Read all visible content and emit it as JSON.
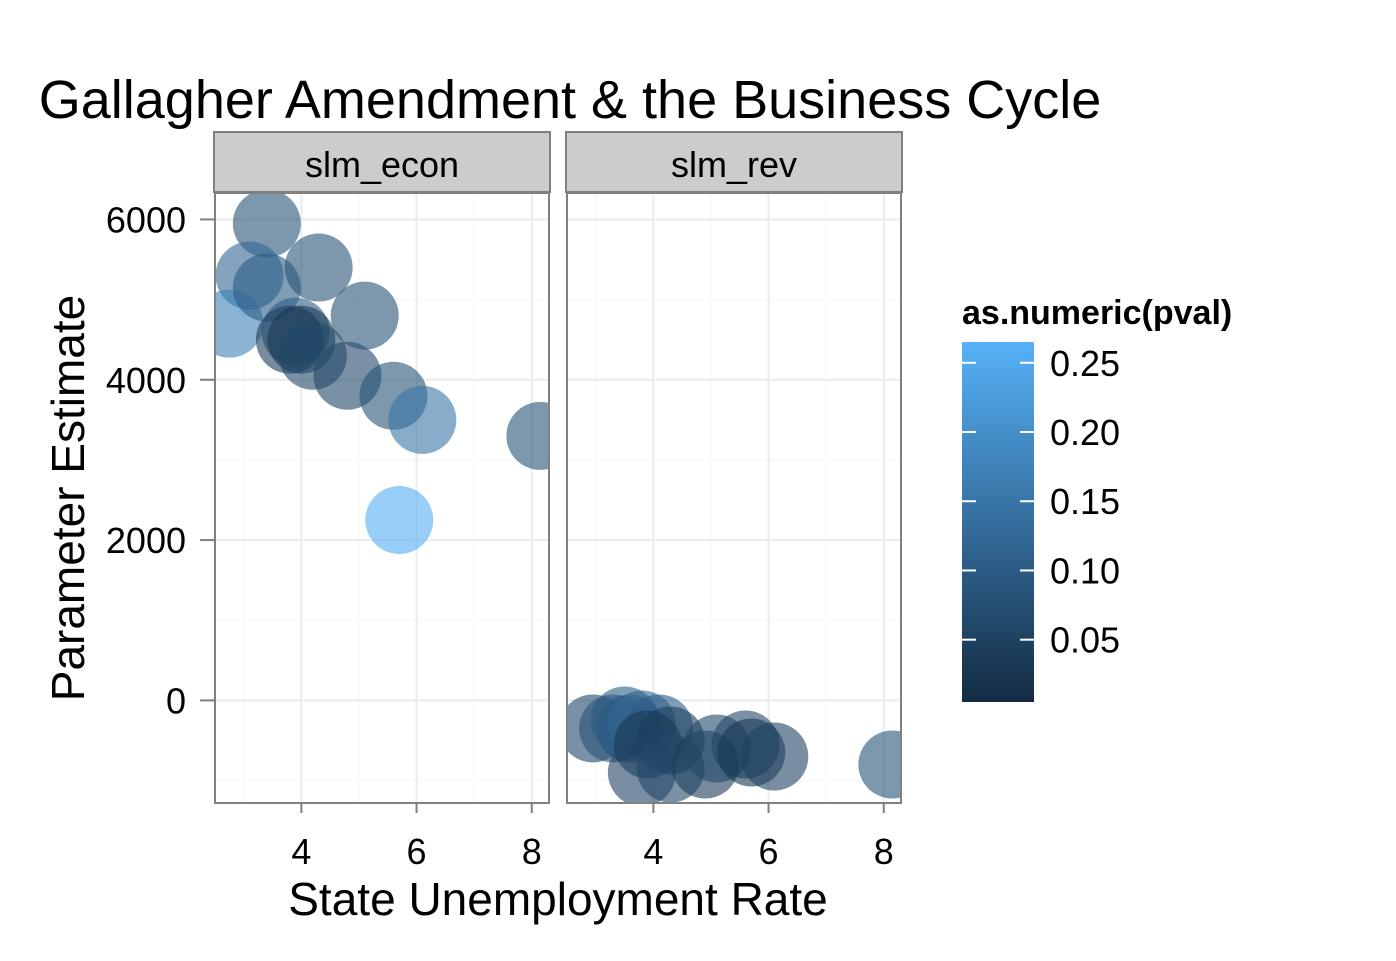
{
  "chart_data": {
    "type": "scatter",
    "title": "Gallagher Amendment & the Business Cycle",
    "xlabel": "State Unemployment Rate",
    "ylabel": "Parameter Estimate",
    "xlim": [
      2.5,
      8.3
    ],
    "ylim": [
      -1280,
      6330
    ],
    "x_ticks": [
      4,
      6,
      8
    ],
    "x_tick_labels": [
      "4",
      "6",
      "8"
    ],
    "y_ticks": [
      0,
      2000,
      4000,
      6000
    ],
    "y_tick_labels": [
      "0",
      "2000",
      "4000",
      "6000"
    ],
    "grid": true,
    "legend": {
      "title": "as.numeric(pval)",
      "position": "right",
      "min": 0.005,
      "max": 0.265,
      "low_color": "#132b43",
      "high_color": "#56b1f7",
      "ticks": [
        0.05,
        0.1,
        0.15,
        0.2,
        0.25
      ],
      "tick_labels": [
        "0.05",
        "0.10",
        "0.15",
        "0.20",
        "0.25"
      ]
    },
    "panels": [
      {
        "name": "slm_econ",
        "points": [
          {
            "x": 3.4,
            "y": 5950,
            "p": 0.08
          },
          {
            "x": 3.1,
            "y": 5300,
            "p": 0.12
          },
          {
            "x": 2.75,
            "y": 4700,
            "p": 0.17
          },
          {
            "x": 3.4,
            "y": 5150,
            "p": 0.1
          },
          {
            "x": 4.3,
            "y": 5400,
            "p": 0.08
          },
          {
            "x": 3.9,
            "y": 4600,
            "p": 0.1
          },
          {
            "x": 3.8,
            "y": 4500,
            "p": 0.04
          },
          {
            "x": 4.0,
            "y": 4500,
            "p": 0.03
          },
          {
            "x": 4.2,
            "y": 4300,
            "p": 0.06
          },
          {
            "x": 4.8,
            "y": 4050,
            "p": 0.06
          },
          {
            "x": 5.1,
            "y": 4800,
            "p": 0.08
          },
          {
            "x": 5.6,
            "y": 3800,
            "p": 0.08
          },
          {
            "x": 6.1,
            "y": 3500,
            "p": 0.15
          },
          {
            "x": 8.15,
            "y": 3300,
            "p": 0.08
          },
          {
            "x": 5.7,
            "y": 2250,
            "p": 0.26
          }
        ]
      },
      {
        "name": "slm_rev",
        "points": [
          {
            "x": 2.95,
            "y": -350,
            "p": 0.06
          },
          {
            "x": 3.3,
            "y": -350,
            "p": 0.08
          },
          {
            "x": 3.6,
            "y": -350,
            "p": 0.08
          },
          {
            "x": 3.5,
            "y": -250,
            "p": 0.1
          },
          {
            "x": 3.8,
            "y": -300,
            "p": 0.12
          },
          {
            "x": 4.1,
            "y": -350,
            "p": 0.1
          },
          {
            "x": 3.9,
            "y": -550,
            "p": 0.03
          },
          {
            "x": 4.3,
            "y": -500,
            "p": 0.04
          },
          {
            "x": 3.8,
            "y": -900,
            "p": 0.05
          },
          {
            "x": 4.3,
            "y": -850,
            "p": 0.06
          },
          {
            "x": 4.9,
            "y": -800,
            "p": 0.04
          },
          {
            "x": 5.1,
            "y": -600,
            "p": 0.06
          },
          {
            "x": 5.6,
            "y": -550,
            "p": 0.06
          },
          {
            "x": 5.7,
            "y": -650,
            "p": 0.03
          },
          {
            "x": 6.1,
            "y": -700,
            "p": 0.05
          },
          {
            "x": 8.15,
            "y": -800,
            "p": 0.08
          }
        ]
      }
    ]
  }
}
